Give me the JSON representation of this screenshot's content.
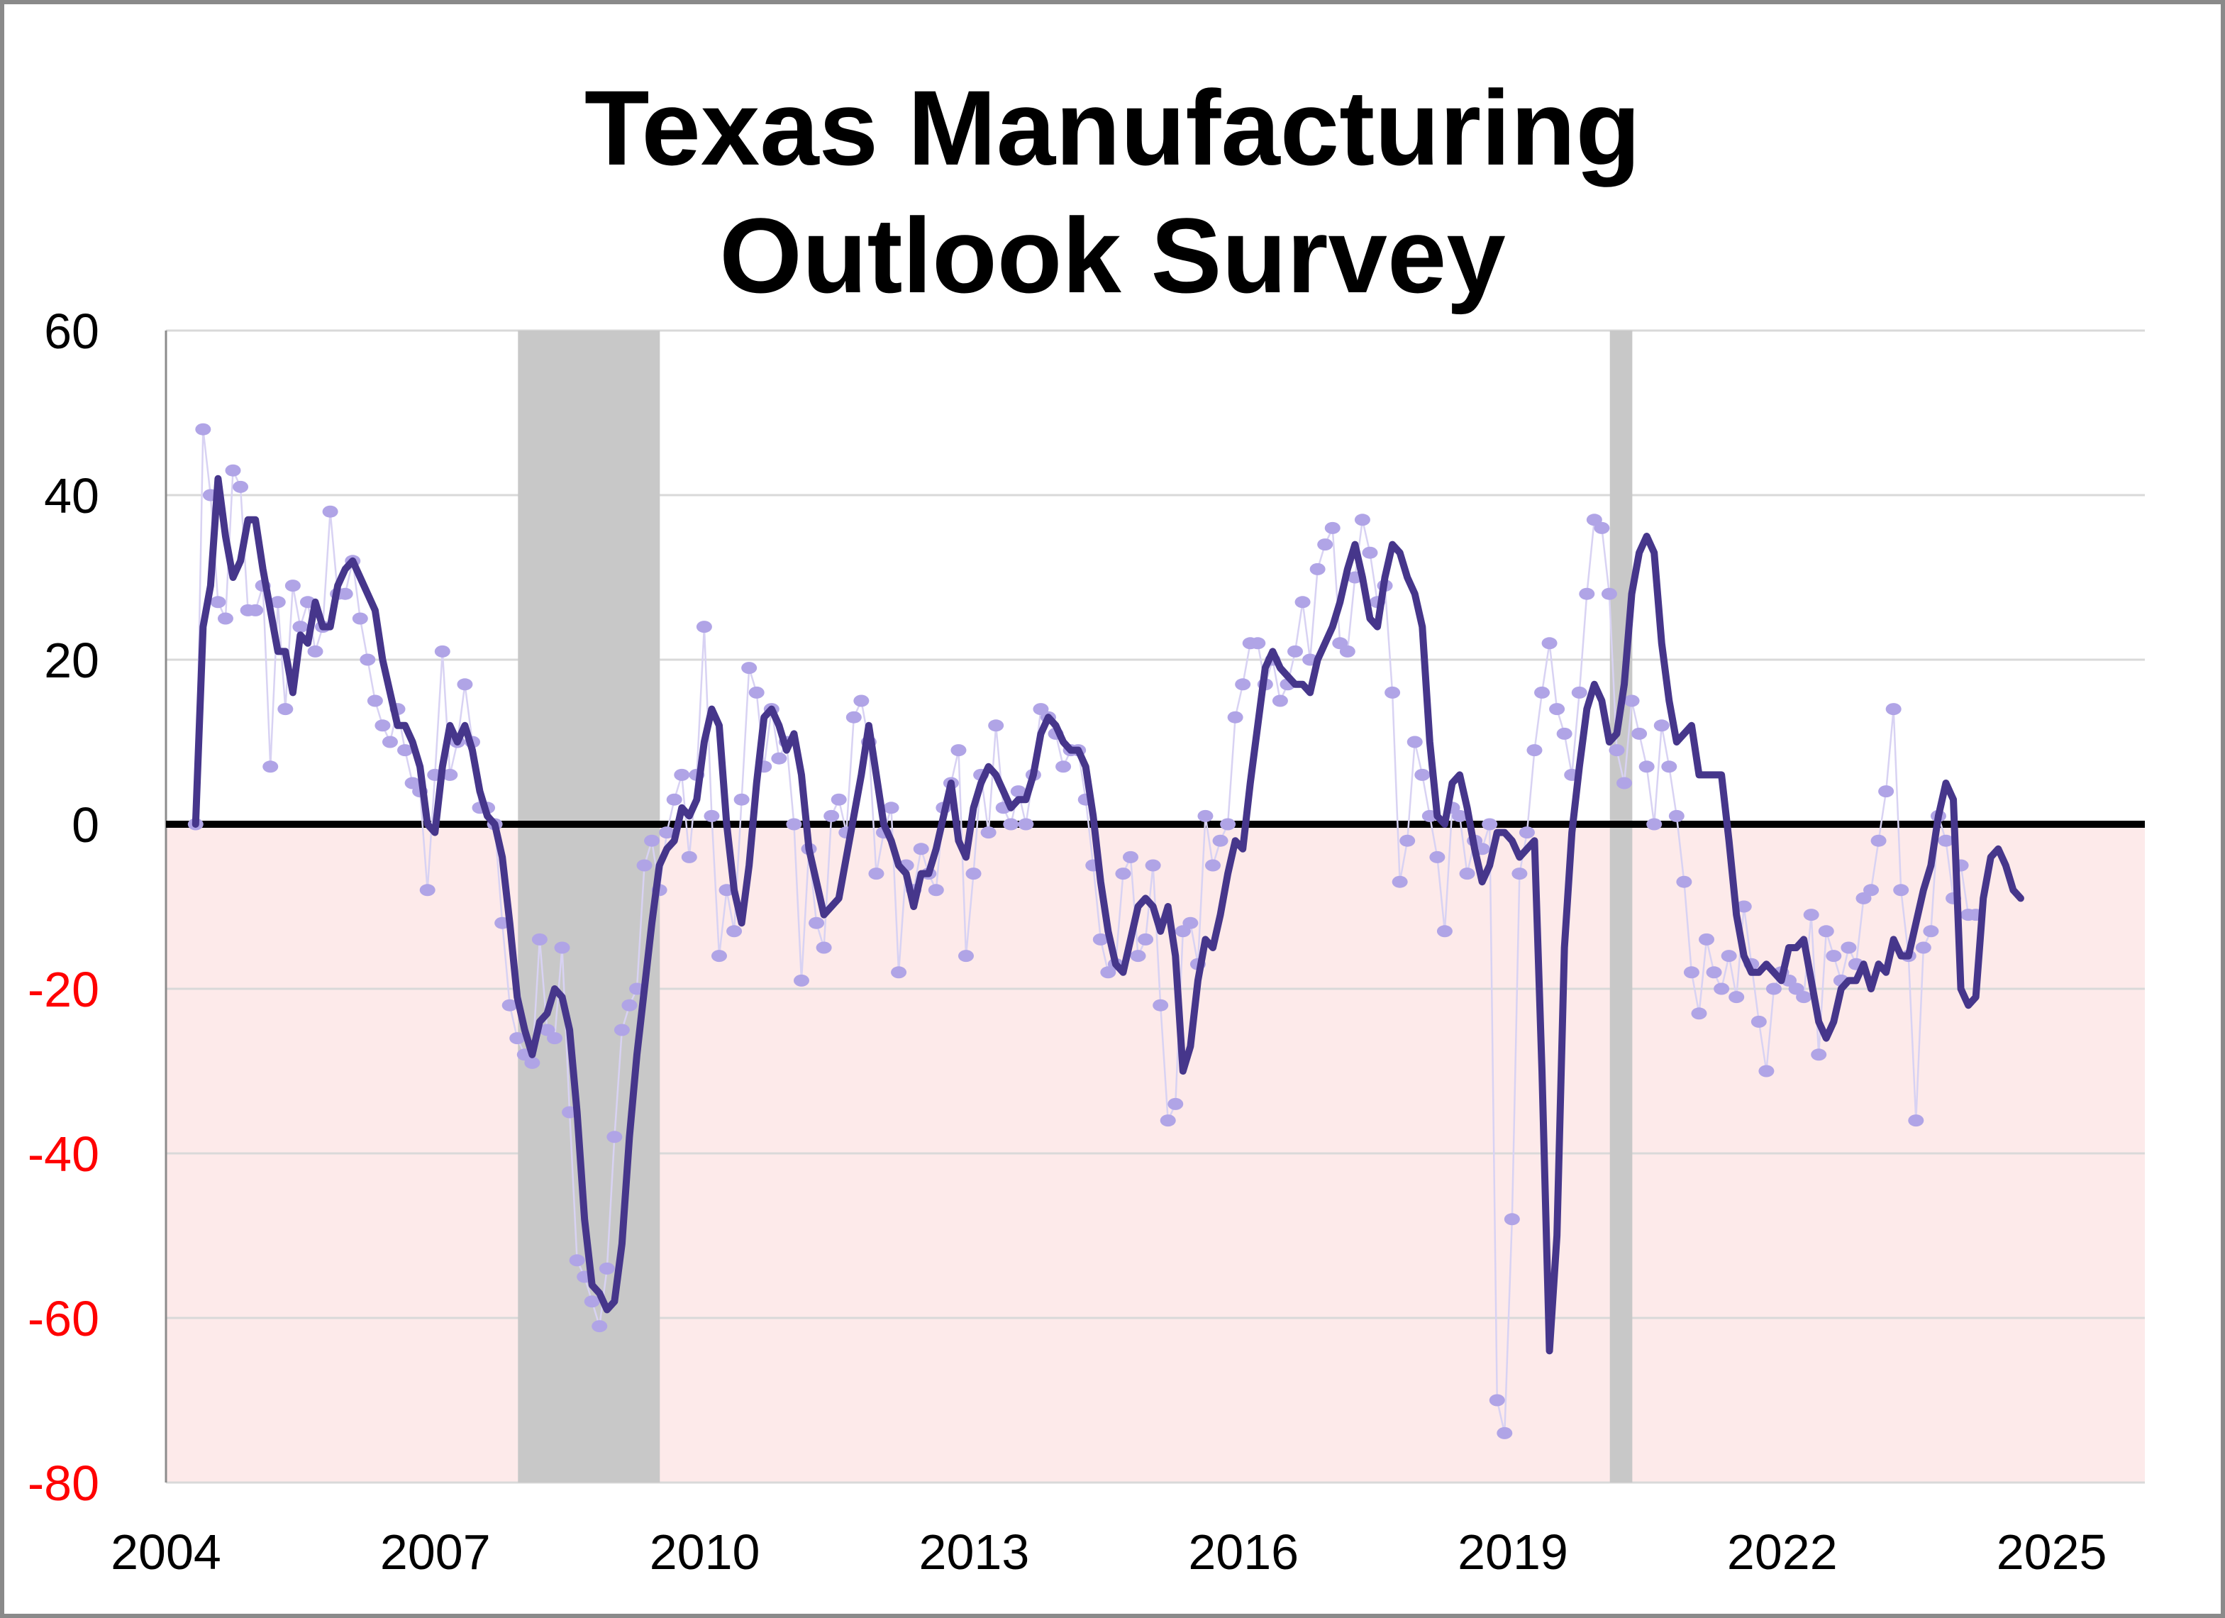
{
  "chart_data": {
    "type": "line",
    "title": "Texas Manufacturing Outlook Survey",
    "title_lines": [
      "Texas Manufacturing",
      "Outlook Survey"
    ],
    "xlabel": "",
    "ylabel": "",
    "ylim": [
      -80,
      60
    ],
    "xlim": [
      2004,
      2026.05
    ],
    "yticks": [
      60,
      40,
      20,
      0,
      -20,
      -40,
      -60,
      -80
    ],
    "xticks": [
      2004,
      2007,
      2010,
      2013,
      2016,
      2019,
      2022,
      2025
    ],
    "grid": true,
    "negative_tick_color": "#ff0000",
    "positive_tick_color": "#000000",
    "negative_region_color": "#fdeaea",
    "recession_color": "#c8c8c8",
    "recessions": [
      [
        2007.92,
        2009.5
      ],
      [
        2020.08,
        2020.33
      ]
    ],
    "series": [
      {
        "name": "monthly index",
        "style": "points",
        "color": "#b0a4e6",
        "x_start": 2004.33,
        "x_step": 0.0833,
        "values": [
          0,
          48,
          40,
          27,
          25,
          43,
          41,
          26,
          26,
          29,
          7,
          27,
          14,
          29,
          24,
          27,
          21,
          24,
          38,
          28,
          28,
          32,
          25,
          20,
          15,
          12,
          10,
          14,
          9,
          5,
          4,
          -8,
          6,
          21,
          6,
          10,
          17,
          10,
          2,
          2,
          0,
          -12,
          -22,
          -26,
          -28,
          -29,
          -14,
          -25,
          -26,
          -15,
          -35,
          -53,
          -55,
          -58,
          -61,
          -54,
          -38,
          -25,
          -22,
          -20,
          -5,
          -2,
          -8,
          -1,
          3,
          6,
          -4,
          6,
          24,
          1,
          -16,
          -8,
          -13,
          3,
          19,
          16,
          7,
          14,
          8,
          10,
          0,
          -19,
          -3,
          -12,
          -15,
          1,
          3,
          -1,
          13,
          15,
          10,
          -6,
          -1,
          2,
          -18,
          -5,
          -8,
          -3,
          -6,
          -8,
          2,
          5,
          9,
          -16,
          -6,
          6,
          -1,
          12,
          2,
          0,
          4,
          0,
          6,
          14,
          13,
          11,
          7,
          9,
          9,
          3,
          -5,
          -14,
          -18,
          -17,
          -6,
          -4,
          -16,
          -14,
          -5,
          -22,
          -36,
          -34,
          -13,
          -12,
          -17,
          1,
          -5,
          -2,
          0,
          13,
          17,
          22,
          22,
          17,
          20,
          15,
          17,
          21,
          27,
          20,
          31,
          34,
          36,
          22,
          21,
          30,
          37,
          33,
          27,
          29,
          16,
          -7,
          -2,
          10,
          6,
          1,
          -4,
          -13,
          2,
          1,
          -6,
          -2,
          -3,
          0,
          -70,
          -74,
          -48,
          -6,
          -1,
          9,
          16,
          22,
          14,
          11,
          6,
          16,
          28,
          37,
          36,
          28,
          9,
          5,
          15,
          11,
          7,
          0,
          12,
          7,
          1,
          -7,
          -18,
          -23,
          -14,
          -18,
          -20,
          -16,
          -21,
          -10,
          -17,
          -24,
          -30,
          -20,
          -18,
          -19,
          -20,
          -21,
          -11,
          -28,
          -13,
          -16,
          -19,
          -15,
          -17,
          -9,
          -8,
          -2,
          4,
          14,
          -8,
          -16,
          -36,
          -15,
          -13,
          1,
          -2,
          -9,
          -5,
          -11,
          -11
        ]
      },
      {
        "name": "three-month moving average",
        "style": "line",
        "color": "#46368b",
        "x_start": 2004.33,
        "x_step": 0.0833,
        "values": [
          0,
          24,
          29,
          42,
          35,
          30,
          32,
          37,
          37,
          31,
          26,
          21,
          21,
          16,
          23,
          22,
          27,
          24,
          24,
          29,
          31,
          32,
          30,
          28,
          26,
          20,
          16,
          12,
          12,
          10,
          7,
          0,
          -1,
          7,
          12,
          10,
          12,
          9,
          4,
          1,
          0,
          -4,
          -12,
          -21,
          -25,
          -28,
          -24,
          -23,
          -20,
          -21,
          -25,
          -35,
          -48,
          -56,
          -57,
          -59,
          -58,
          -51,
          -38,
          -28,
          -20,
          -12,
          -5,
          -3,
          -2,
          2,
          1,
          3,
          10,
          14,
          12,
          0,
          -8,
          -12,
          -5,
          5,
          13,
          14,
          12,
          9,
          11,
          6,
          -3,
          -7,
          -11,
          -10,
          -9,
          -4,
          1,
          6,
          12,
          6,
          0,
          -2,
          -5,
          -6,
          -10,
          -6,
          -6,
          -3,
          1,
          5,
          -2,
          -4,
          2,
          5,
          7,
          6,
          4,
          2,
          3,
          3,
          6,
          11,
          13,
          12,
          10,
          9,
          9,
          7,
          1,
          -7,
          -13,
          -17,
          -18,
          -14,
          -10,
          -9,
          -10,
          -13,
          -10,
          -16,
          -30,
          -27,
          -19,
          -14,
          -15,
          -11,
          -6,
          -2,
          -3,
          5,
          12,
          19,
          21,
          19,
          18,
          17,
          17,
          16,
          20,
          22,
          24,
          27,
          31,
          34,
          30,
          25,
          24,
          30,
          34,
          33,
          30,
          28,
          24,
          10,
          1,
          0,
          5,
          6,
          2,
          -3,
          -7,
          -5,
          -1,
          -1,
          -2,
          -4,
          -3,
          -2,
          -30,
          -64,
          -50,
          -15,
          -1,
          7,
          14,
          17,
          15,
          10,
          11,
          17,
          28,
          33,
          35,
          33,
          22,
          15,
          10,
          11,
          12,
          6,
          6,
          6,
          6,
          -2,
          -11,
          -16,
          -18,
          -18,
          -17,
          -18,
          -19,
          -15,
          -15,
          -14,
          -19,
          -24,
          -26,
          -24,
          -20,
          -19,
          -19,
          -17,
          -20,
          -17,
          -18,
          -14,
          -16,
          -16,
          -12,
          -8,
          -5,
          1,
          5,
          3,
          -20,
          -22,
          -21,
          -9,
          -4,
          -3,
          -5,
          -8,
          -9
        ]
      }
    ]
  }
}
